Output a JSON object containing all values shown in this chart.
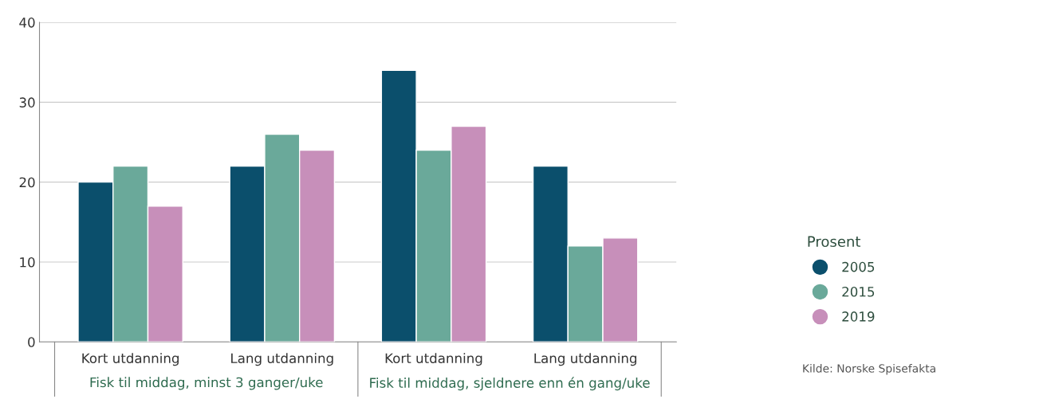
{
  "chart_data": {
    "type": "bar",
    "categories": [
      "Kort utdanning",
      "Lang utdanning",
      "Kort utdanning",
      "Lang utdanning"
    ],
    "series": [
      {
        "name": "2005",
        "color": "#0b4f6c",
        "values": [
          20,
          22,
          34,
          22
        ]
      },
      {
        "name": "2015",
        "color": "#6aa99a",
        "values": [
          22,
          26,
          24,
          12
        ]
      },
      {
        "name": "2019",
        "color": "#c78fba",
        "values": [
          17,
          24,
          27,
          13
        ]
      }
    ],
    "ylim": [
      0,
      40
    ],
    "yticks": [
      0,
      10,
      20,
      30,
      40
    ],
    "grid": "y",
    "legend": "right",
    "legend_title": "Prosent",
    "annotations": [
      "Fisk til middag, minst 3 ganger/uke",
      "Fisk til middag, sjeldnere enn én gang/uke",
      "Kilde: Norske Spisefakta"
    ]
  }
}
